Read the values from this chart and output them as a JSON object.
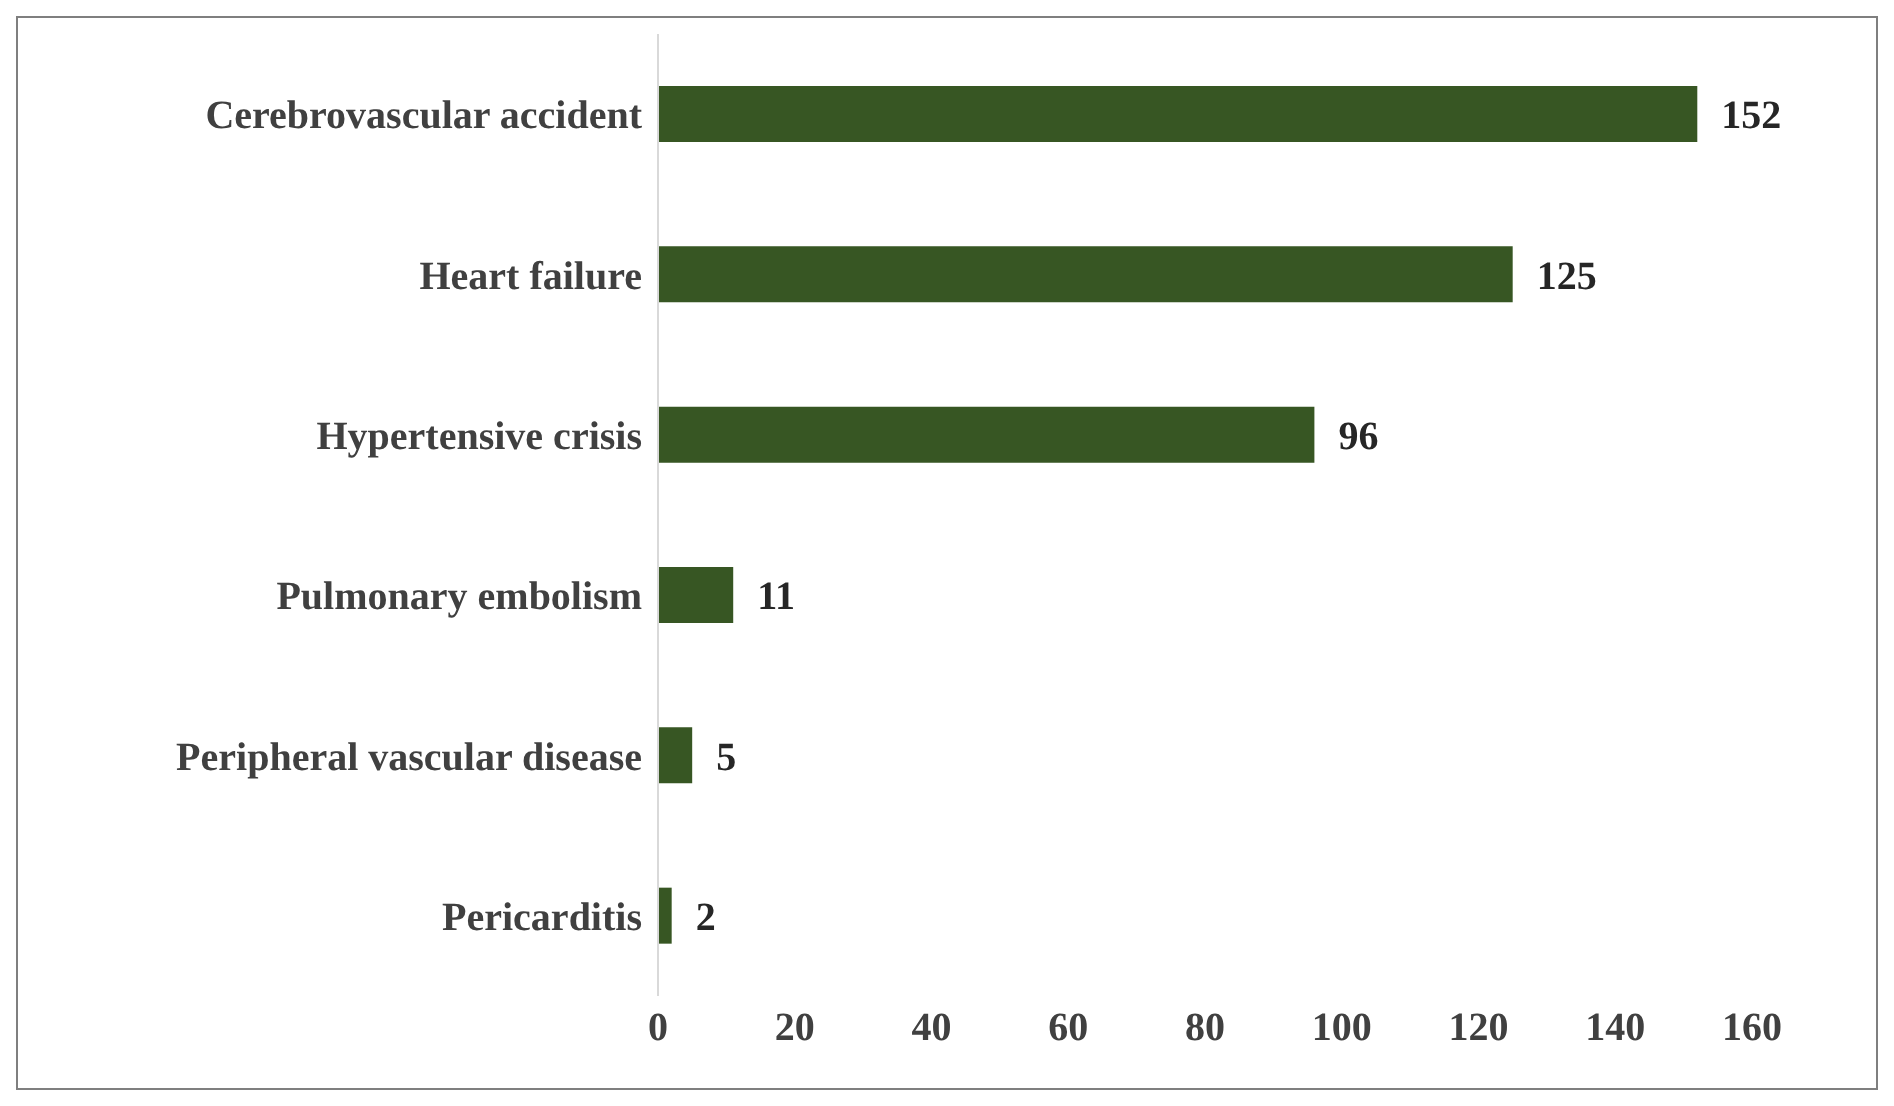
{
  "chart_data": {
    "type": "bar",
    "orientation": "horizontal",
    "categories": [
      "Cerebrovascular accident",
      "Heart failure",
      "Hypertensive crisis",
      "Pulmonary embolism",
      "Peripheral vascular disease",
      "Pericarditis"
    ],
    "values": [
      152,
      125,
      96,
      11,
      5,
      2
    ],
    "color": "#375623",
    "xlim": [
      0,
      160
    ],
    "xticks": [
      0,
      20,
      40,
      60,
      80,
      100,
      120,
      140,
      160
    ],
    "data_labels": true,
    "grid": false,
    "legend": false
  }
}
